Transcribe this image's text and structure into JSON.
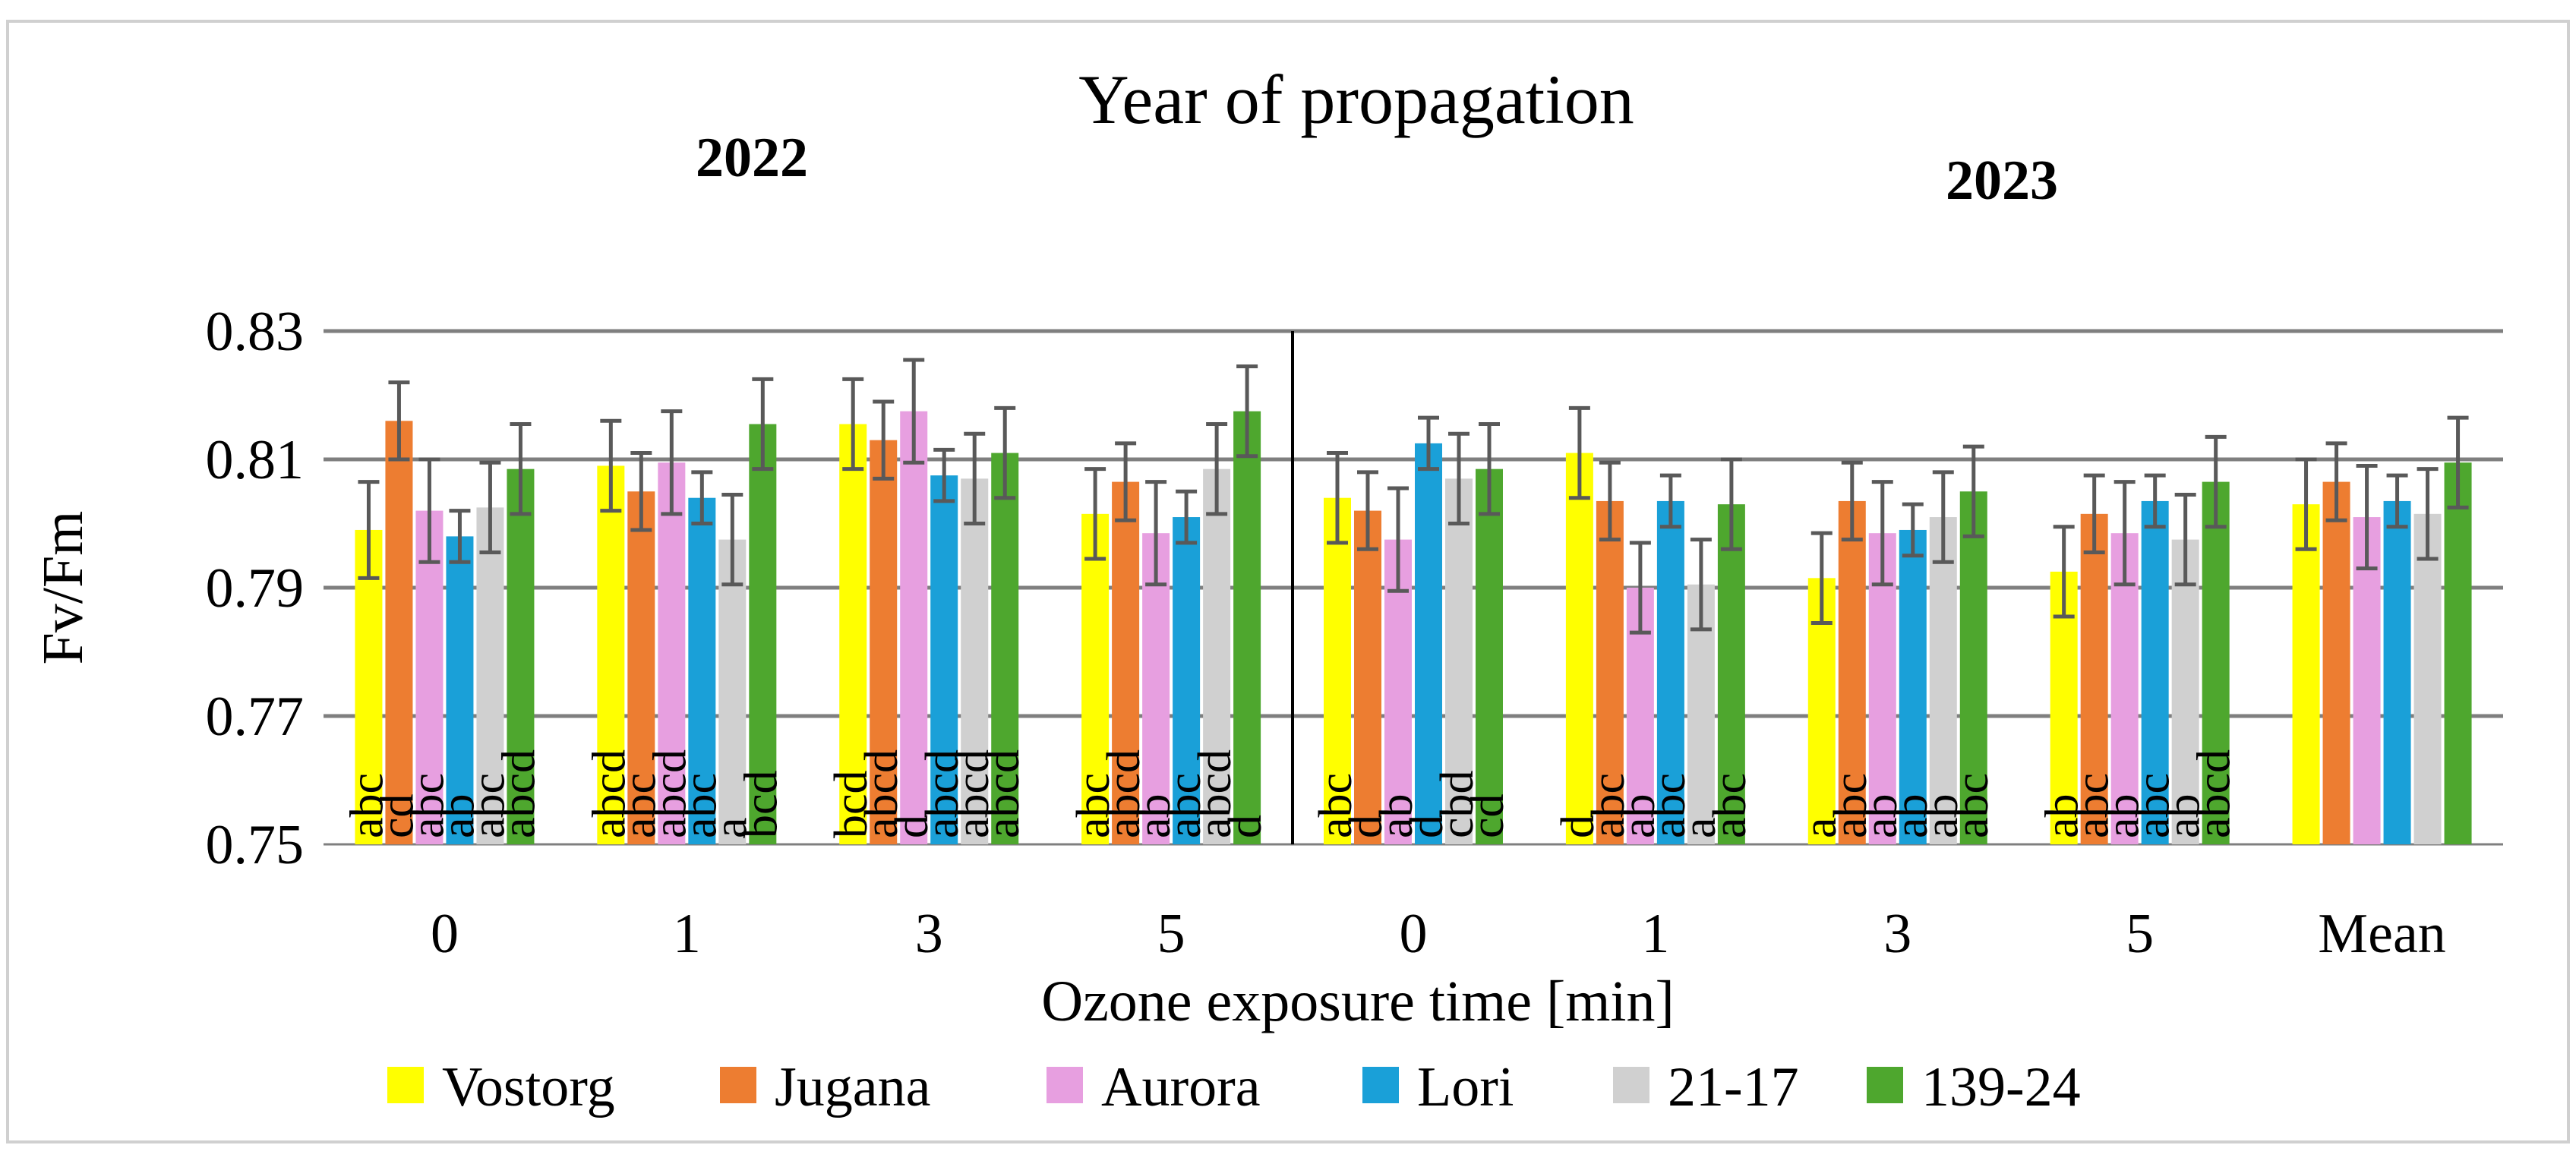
{
  "chart_data": {
    "type": "bar",
    "title": "Year of propagation",
    "group_labels": [
      "2022",
      "2023"
    ],
    "xlabel": "Ozone exposure time [min]",
    "ylabel": "Fv/Fm",
    "ylim": [
      0.75,
      0.83
    ],
    "yticks": [
      "0.75",
      "0.77",
      "0.79",
      "0.81",
      "0.83"
    ],
    "grid": true,
    "legend_position": "bottom",
    "categories": [
      "0",
      "1",
      "3",
      "5",
      "0",
      "1",
      "3",
      "5",
      "Mean"
    ],
    "series": [
      {
        "name": "Vostorg",
        "color": "#FFFF00",
        "values": [
          0.799,
          0.809,
          0.8155,
          0.8015,
          0.804,
          0.811,
          0.7915,
          0.7925,
          0.803
        ],
        "errors": [
          0.0075,
          0.007,
          0.007,
          0.007,
          0.007,
          0.007,
          0.007,
          0.007,
          0.007
        ],
        "letters": [
          "abc",
          "abcd",
          "bcd",
          "abc",
          "abc",
          "d",
          "a",
          "ab",
          ""
        ]
      },
      {
        "name": "Jugana",
        "color": "#ED7D31",
        "values": [
          0.816,
          0.805,
          0.813,
          0.8065,
          0.802,
          0.8035,
          0.8035,
          0.8015,
          0.8065
        ],
        "errors": [
          0.006,
          0.006,
          0.006,
          0.006,
          0.006,
          0.006,
          0.006,
          0.006,
          0.006
        ],
        "letters": [
          "cd",
          "abc",
          "abcd",
          "abcd",
          "d",
          "abc",
          "abc",
          "abc",
          ""
        ]
      },
      {
        "name": "Aurora",
        "color": "#E79FE0",
        "values": [
          0.802,
          0.8095,
          0.8175,
          0.7985,
          0.7975,
          0.79,
          0.7985,
          0.7985,
          0.801
        ],
        "errors": [
          0.008,
          0.008,
          0.008,
          0.008,
          0.008,
          0.007,
          0.008,
          0.008,
          0.008
        ],
        "letters": [
          "abc",
          "abcd",
          "d",
          "ab",
          "ab",
          "ab",
          "ab",
          "ab",
          ""
        ]
      },
      {
        "name": "Lori",
        "color": "#1AA0D8",
        "values": [
          0.798,
          0.804,
          0.8075,
          0.801,
          0.8125,
          0.8035,
          0.799,
          0.8035,
          0.8035
        ],
        "errors": [
          0.004,
          0.004,
          0.004,
          0.004,
          0.004,
          0.004,
          0.004,
          0.004,
          0.004
        ],
        "letters": [
          "ab",
          "abc",
          "abcd",
          "abc",
          "d",
          "abc",
          "ab",
          "abc",
          ""
        ]
      },
      {
        "name": "21-17",
        "color": "#D0D0D0",
        "values": [
          0.8025,
          0.7975,
          0.807,
          0.8085,
          0.807,
          0.7905,
          0.801,
          0.7975,
          0.8015
        ],
        "errors": [
          0.007,
          0.007,
          0.007,
          0.007,
          0.007,
          0.007,
          0.007,
          0.007,
          0.007
        ],
        "letters": [
          "abc",
          "a",
          "abcd",
          "abcd",
          "cbd",
          "a",
          "ab",
          "ab",
          ""
        ]
      },
      {
        "name": "139-24",
        "color": "#4EA72E",
        "values": [
          0.8085,
          0.8155,
          0.811,
          0.8175,
          0.8085,
          0.803,
          0.805,
          0.8065,
          0.8095
        ],
        "errors": [
          0.007,
          0.007,
          0.007,
          0.007,
          0.007,
          0.007,
          0.007,
          0.007,
          0.007
        ],
        "letters": [
          "abcd",
          "bcd",
          "abcd",
          "d",
          "cd",
          "abc",
          "abc",
          "abcd",
          ""
        ]
      }
    ]
  }
}
